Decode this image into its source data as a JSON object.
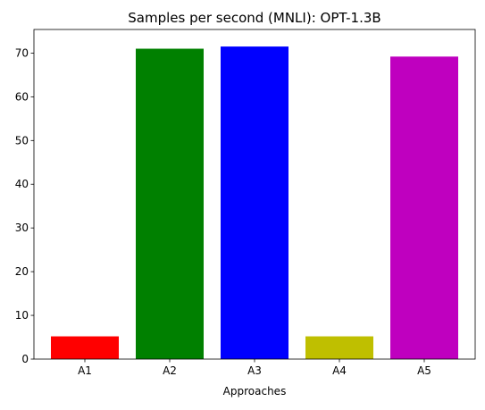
{
  "chart_data": {
    "type": "bar",
    "title": "Samples per second (MNLI): OPT-1.3B",
    "xlabel": "Approaches",
    "ylabel": "",
    "categories": [
      "A1",
      "A2",
      "A3",
      "A4",
      "A5"
    ],
    "values": [
      5.2,
      71.0,
      71.5,
      5.2,
      69.2
    ],
    "colors": [
      "#ff0000",
      "#008000",
      "#0000ff",
      "#bfbf00",
      "#bf00bf"
    ],
    "ylim": [
      0,
      75.4
    ],
    "yticks": [
      0,
      10,
      20,
      30,
      40,
      50,
      60,
      70
    ],
    "grid": false,
    "legend": false
  }
}
